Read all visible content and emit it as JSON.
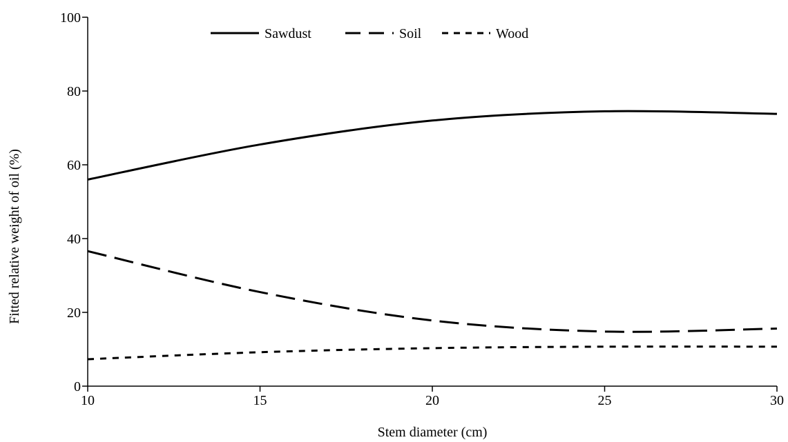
{
  "chart_data": {
    "type": "line",
    "x": [
      10,
      15,
      20,
      25,
      30
    ],
    "series": [
      {
        "name": "Sawdust",
        "values": [
          56,
          65.5,
          72,
          74.5,
          73.8
        ],
        "line_style": "solid"
      },
      {
        "name": "Soil",
        "values": [
          36.6,
          25.5,
          17.8,
          14.8,
          15.6
        ],
        "line_style": "dashed"
      },
      {
        "name": "Wood",
        "values": [
          7.3,
          9.2,
          10.3,
          10.7,
          10.7
        ],
        "line_style": "dotted"
      }
    ],
    "xlabel": "Stem diameter (cm)",
    "ylabel": "Fitted relative weight of oil (%)",
    "xlim": [
      10,
      30
    ],
    "ylim": [
      0,
      100
    ],
    "xticks": [
      10,
      15,
      20,
      25,
      30
    ],
    "yticks": [
      0,
      20,
      40,
      60,
      80,
      100
    ],
    "legend_position": "top-center",
    "grid": false,
    "line_color": "#000000"
  }
}
